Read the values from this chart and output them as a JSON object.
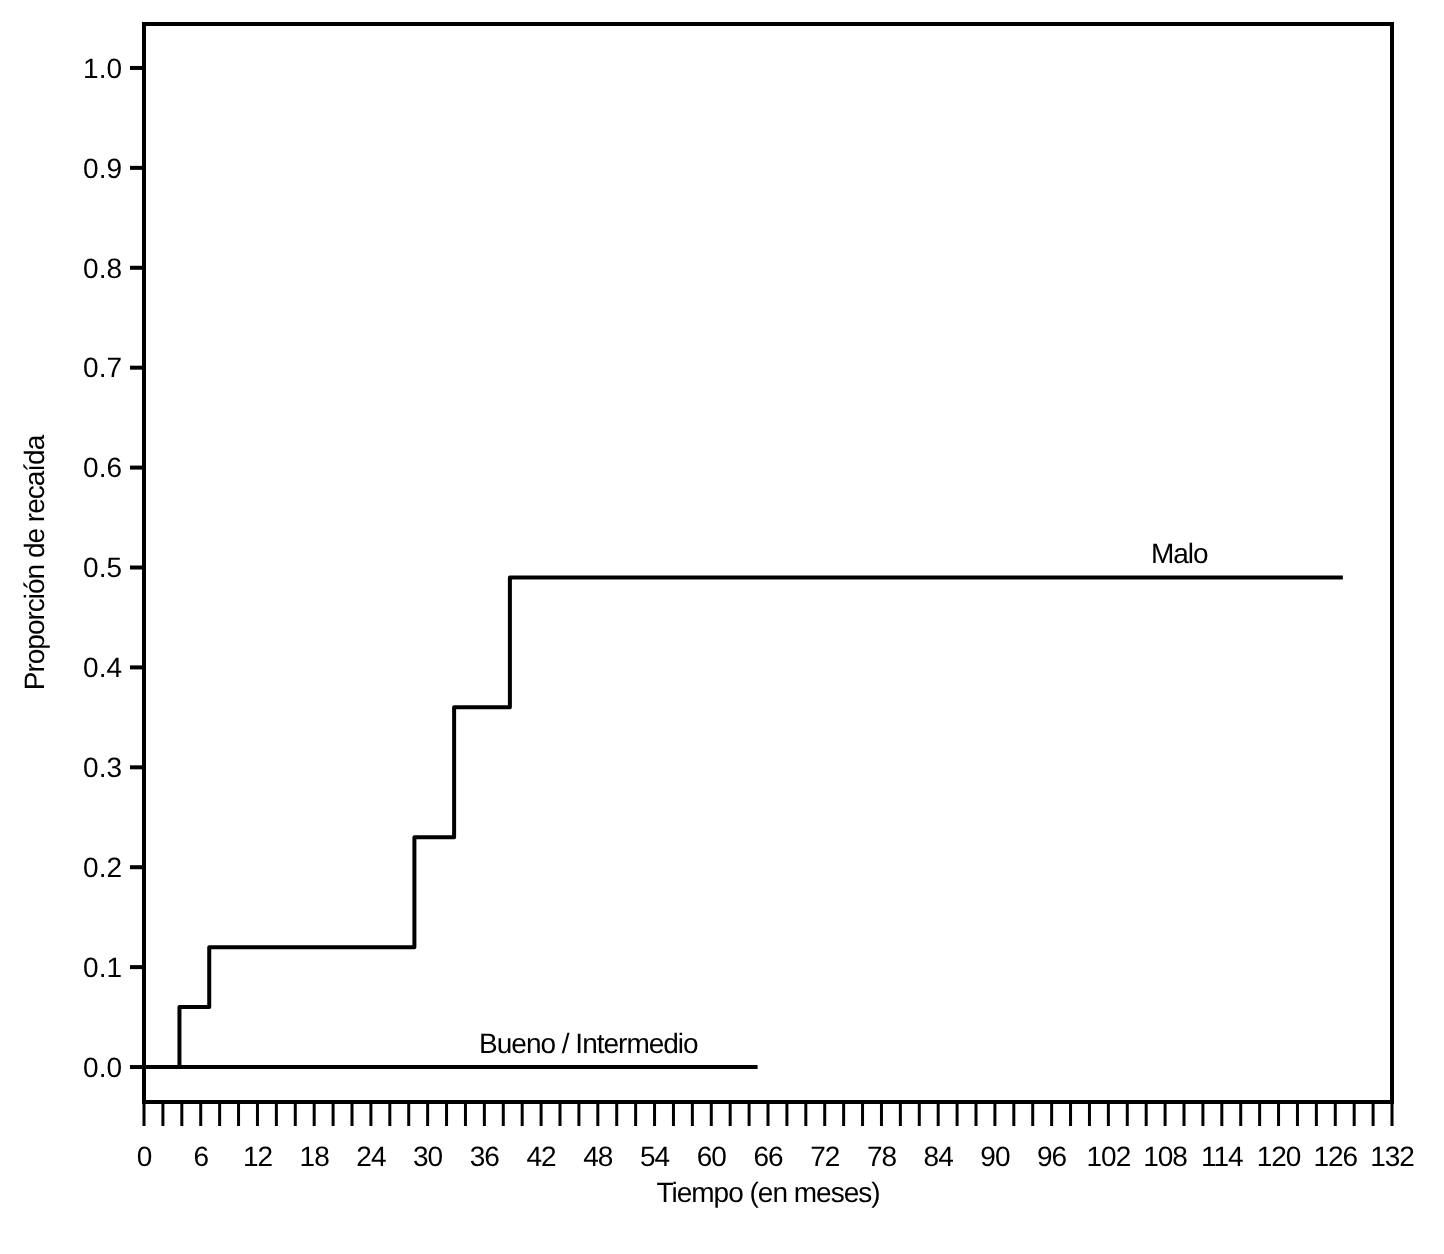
{
  "chart_data": {
    "type": "step",
    "xlabel": "Tiempo (en meses)",
    "ylabel": "Proporción de recaída",
    "xlim": [
      0,
      132
    ],
    "ylim": [
      -0.035,
      1.044
    ],
    "xticks": [
      0,
      {
        "value": 2,
        "label": null
      },
      {
        "value": 4,
        "label": null
      },
      6,
      {
        "value": 8,
        "label": null
      },
      {
        "value": 10,
        "label": null
      },
      12,
      {
        "value": 14,
        "label": null
      },
      {
        "value": 16,
        "label": null
      },
      18,
      {
        "value": 20,
        "label": null
      },
      {
        "value": 22,
        "label": null
      },
      24,
      {
        "value": 26,
        "label": null
      },
      {
        "value": 28,
        "label": null
      },
      30,
      {
        "value": 32,
        "label": null
      },
      {
        "value": 34,
        "label": null
      },
      36,
      {
        "value": 38,
        "label": null
      },
      {
        "value": 40,
        "label": null
      },
      42,
      {
        "value": 44,
        "label": null
      },
      {
        "value": 46,
        "label": null
      },
      48,
      {
        "value": 50,
        "label": null
      },
      {
        "value": 52,
        "label": null
      },
      54,
      {
        "value": 56,
        "label": null
      },
      {
        "value": 58,
        "label": null
      },
      60,
      {
        "value": 62,
        "label": null
      },
      {
        "value": 64,
        "label": null
      },
      66,
      {
        "value": 68,
        "label": null
      },
      {
        "value": 70,
        "label": null
      },
      72,
      {
        "value": 74,
        "label": null
      },
      {
        "value": 76,
        "label": null
      },
      78,
      {
        "value": 80,
        "label": null
      },
      {
        "value": 82,
        "label": null
      },
      84,
      {
        "value": 86,
        "label": null
      },
      {
        "value": 88,
        "label": null
      },
      90,
      {
        "value": 92,
        "label": null
      },
      {
        "value": 94,
        "label": null
      },
      96,
      {
        "value": 98,
        "label": null
      },
      {
        "value": 100,
        "label": null
      },
      102,
      {
        "value": 104,
        "label": null
      },
      {
        "value": 106,
        "label": null
      },
      108,
      {
        "value": 110,
        "label": null
      },
      {
        "value": 112,
        "label": null
      },
      114,
      {
        "value": 116,
        "label": null
      },
      {
        "value": 118,
        "label": null
      },
      120,
      {
        "value": 122,
        "label": null
      },
      {
        "value": 124,
        "label": null
      },
      126,
      {
        "value": 128,
        "label": null
      },
      {
        "value": 130,
        "label": null
      },
      132
    ],
    "yticks": [
      {
        "value": 0,
        "label": "0.0"
      },
      {
        "value": 0.1,
        "label": "0.1"
      },
      {
        "value": 0.2,
        "label": "0.2"
      },
      {
        "value": 0.3,
        "label": "0.3"
      },
      {
        "value": 0.4,
        "label": "0.4"
      },
      {
        "value": 0.5,
        "label": "0.5"
      },
      {
        "value": 0.6,
        "label": "0.6"
      },
      {
        "value": 0.7,
        "label": "0.7"
      },
      {
        "value": 0.8,
        "label": "0.8"
      },
      {
        "value": 0.9,
        "label": "0.9"
      },
      {
        "value": 1,
        "label": "1.0"
      }
    ],
    "grid": false,
    "series": [
      {
        "color": "#000000",
        "x": [
          0,
          3.75,
          6.9,
          28.6,
          32.8,
          38.7,
          126.8
        ],
        "values": [
          0,
          0.06,
          0.12,
          0.23,
          0.36,
          0.49,
          0.49
        ]
      },
      {
        "color": "#000000",
        "x": [
          0,
          64.9
        ],
        "values": [
          0,
          0
        ]
      }
    ],
    "annotations": [
      {
        "text": "Malo",
        "x": 109.5,
        "y": 0.49
      },
      {
        "text": "Bueno / Intermedio",
        "x": 47,
        "y": 0
      }
    ]
  }
}
